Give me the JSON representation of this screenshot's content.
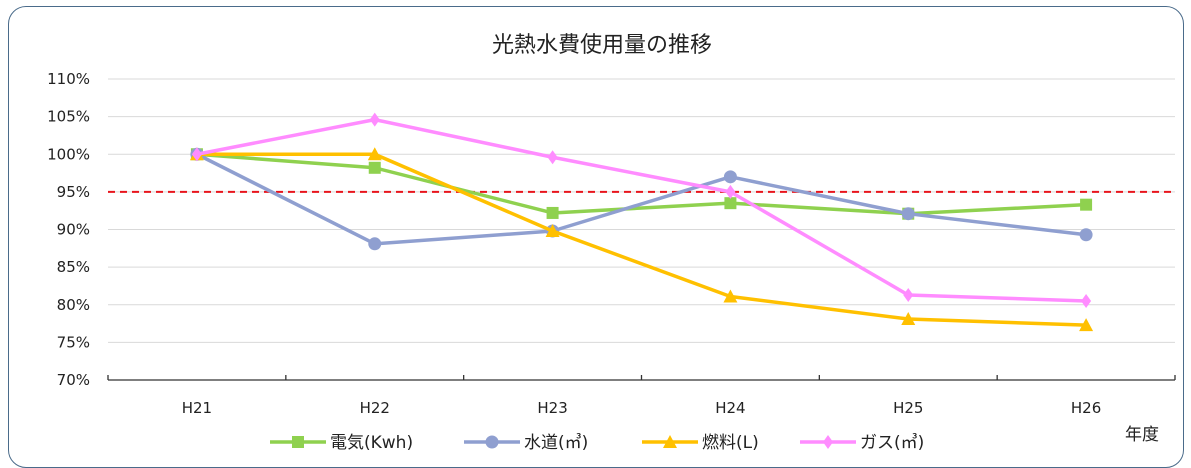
{
  "chart_data": {
    "type": "line",
    "title": "光熱水費使用量の推移",
    "xlabel": "年度",
    "ylabel": "",
    "categories": [
      "H21",
      "H22",
      "H23",
      "H24",
      "H25",
      "H26"
    ],
    "ylim": [
      70,
      110
    ],
    "yticks": [
      70,
      75,
      80,
      85,
      90,
      95,
      100,
      105,
      110
    ],
    "ytick_labels": [
      "70%",
      "75%",
      "80%",
      "85%",
      "90%",
      "95%",
      "100%",
      "105%",
      "110%"
    ],
    "grid": true,
    "legend_position": "bottom",
    "reference_line": {
      "value": 95,
      "color": "#e8141c",
      "style": "dashed"
    },
    "series": [
      {
        "name": "電気(Kwh)",
        "color": "#8fd14f",
        "marker": "square",
        "values": [
          100,
          98.2,
          92.2,
          93.5,
          92.1,
          93.3
        ]
      },
      {
        "name": "水道(㎥)",
        "color": "#8f9fd0",
        "marker": "circle",
        "values": [
          100,
          88.1,
          89.8,
          97.0,
          92.1,
          89.3
        ]
      },
      {
        "name": "燃料(L)",
        "color": "#ffc000",
        "marker": "triangle",
        "values": [
          100,
          100,
          89.8,
          81.1,
          78.1,
          77.3
        ]
      },
      {
        "name": "ガス(㎥)",
        "color": "#ff8cff",
        "marker": "diamond",
        "values": [
          100,
          104.6,
          99.6,
          95.0,
          81.3,
          80.5
        ]
      }
    ]
  }
}
